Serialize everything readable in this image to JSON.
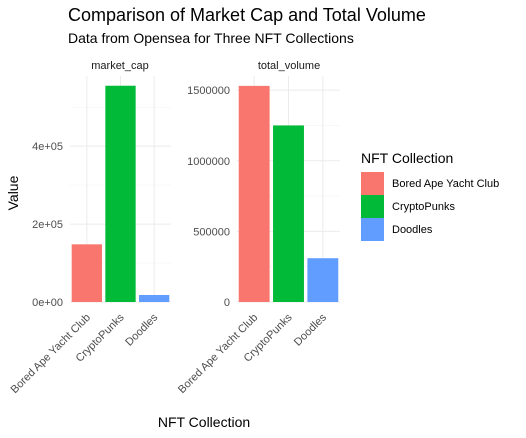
{
  "chart_data": {
    "type": "bar",
    "title": "Comparison of Market Cap and Total Volume",
    "subtitle": "Data from Opensea for Three NFT Collections",
    "xlabel": "NFT Collection",
    "ylabel": "Value",
    "categories": [
      "Bored Ape Yacht Club",
      "CryptoPunks",
      "Doodles"
    ],
    "colors": [
      "#F8766D",
      "#00BA38",
      "#619CFF"
    ],
    "legend": {
      "title": "NFT Collection",
      "position": "right",
      "entries": [
        "Bored Ape Yacht Club",
        "CryptoPunks",
        "Doodles"
      ]
    },
    "grid": true,
    "facets": [
      {
        "name": "market_cap",
        "values": [
          148000,
          555000,
          18000
        ],
        "ylim": [
          0,
          580000
        ],
        "yticks": [
          0,
          200000,
          400000
        ],
        "ytick_labels": [
          "0e+00",
          "2e+05",
          "4e+05"
        ]
      },
      {
        "name": "total_volume",
        "values": [
          1530000,
          1250000,
          310000
        ],
        "ylim": [
          0,
          1600000
        ],
        "yticks": [
          0,
          500000,
          1000000,
          1500000
        ],
        "ytick_labels": [
          "0",
          "500000",
          "1000000",
          "1500000"
        ]
      }
    ]
  }
}
